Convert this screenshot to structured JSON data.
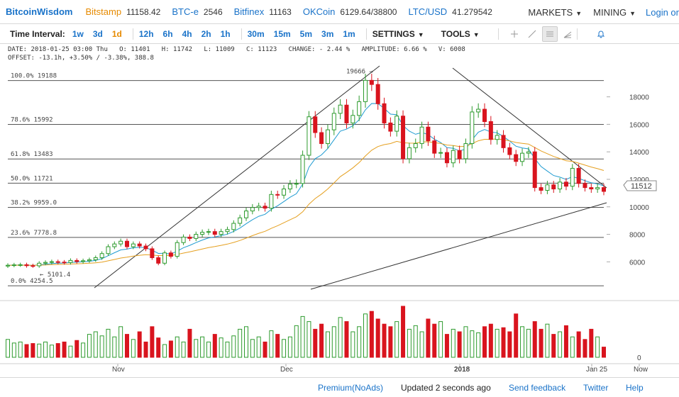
{
  "brand": "BitcoinWisdom",
  "markets": [
    {
      "exchange": "Bitstamp",
      "price": "11158.42",
      "color": "#e68a00"
    },
    {
      "exchange": "BTC-e",
      "price": "2546",
      "color": "#1a73c9"
    },
    {
      "exchange": "Bitfinex",
      "price": "11163",
      "color": "#1a73c9"
    },
    {
      "exchange": "OKCoin",
      "price": "6129.64/38800",
      "color": "#1a73c9"
    },
    {
      "exchange": "LTC/USD",
      "price": "41.279542",
      "color": "#1a73c9"
    }
  ],
  "menus": {
    "markets": "MARKETS",
    "mining": "MINING",
    "login": "Login or"
  },
  "toolbar": {
    "label": "Time Interval:",
    "intervals": [
      "1w",
      "3d",
      "1d",
      "12h",
      "6h",
      "4h",
      "2h",
      "1h",
      "30m",
      "15m",
      "5m",
      "3m",
      "1m"
    ],
    "active_interval": "1d",
    "settings": "SETTINGS",
    "tools": "TOOLS"
  },
  "info": {
    "line1": "DATE: 2018-01-25 03:00 Thu   O: 11401   H: 11742   L: 11009   C: 11123   CHANGE: - 2.44 %   AMPLITUDE: 6.66 %   V: 6008",
    "line2": "OFFSET: -13.1h, +3.50% / -3.38%, 388.8"
  },
  "chart_data": {
    "type": "candlestick",
    "y_ticks": [
      6000,
      8000,
      10000,
      12000,
      14000,
      16000,
      18000
    ],
    "ylim": [
      3800,
      20300
    ],
    "x_ticks": [
      "Nov",
      "Dec",
      "2018",
      "Jan 25",
      "Now"
    ],
    "current_price": "11512",
    "volume_axis_label": "0",
    "fib_levels": [
      {
        "label": "100.0% 19188",
        "value": 19188
      },
      {
        "label": "78.6% 15992",
        "value": 15992
      },
      {
        "label": "61.8% 13483",
        "value": 13483
      },
      {
        "label": "50.0% 11721",
        "value": 11721
      },
      {
        "label": "38.2% 9959.0",
        "value": 9959
      },
      {
        "label": "23.6% 7778.8",
        "value": 7778.8
      },
      {
        "label": "0.0% 4254.5",
        "value": 4254.5
      }
    ],
    "annotations": [
      {
        "text": "19666 →",
        "value": 19666
      },
      {
        "text": "← 5101.4",
        "value": 5101.4
      }
    ],
    "closes": [
      5750,
      5780,
      5790,
      5720,
      5710,
      5900,
      5960,
      6010,
      5980,
      5950,
      6100,
      6020,
      6080,
      6150,
      6300,
      6600,
      7100,
      7300,
      7500,
      7100,
      7300,
      7150,
      6950,
      6300,
      5900,
      6650,
      6400,
      7400,
      7800,
      7700,
      8000,
      8150,
      8200,
      8000,
      8200,
      8350,
      8800,
      9200,
      9700,
      9950,
      10050,
      9900,
      10900,
      10850,
      11300,
      11650,
      11700,
      13750,
      16550,
      15400,
      14600,
      15600,
      16800,
      17400,
      16100,
      16650,
      17650,
      19200,
      18900,
      17500,
      16100,
      15500,
      16600,
      13500,
      14300,
      14600,
      15800,
      14800,
      13900,
      13950,
      13200,
      14100,
      13500,
      14600,
      16900,
      17100,
      16200,
      14900,
      15200,
      14300,
      13800,
      13300,
      13900,
      14000,
      11400,
      11200,
      11600,
      11300,
      11800,
      11500,
      12800,
      11700,
      11400,
      11300,
      11400,
      11123
    ],
    "volumes": [
      0.35,
      0.28,
      0.3,
      0.25,
      0.27,
      0.26,
      0.3,
      0.24,
      0.27,
      0.3,
      0.22,
      0.33,
      0.28,
      0.45,
      0.5,
      0.42,
      0.55,
      0.4,
      0.6,
      0.45,
      0.35,
      0.5,
      0.3,
      0.6,
      0.38,
      0.25,
      0.32,
      0.4,
      0.3,
      0.55,
      0.35,
      0.4,
      0.3,
      0.45,
      0.38,
      0.3,
      0.42,
      0.55,
      0.6,
      0.35,
      0.4,
      0.3,
      0.52,
      0.45,
      0.35,
      0.4,
      0.62,
      0.8,
      0.7,
      0.55,
      0.65,
      0.5,
      0.6,
      0.78,
      0.7,
      0.5,
      0.6,
      0.85,
      0.9,
      0.75,
      0.65,
      0.6,
      0.7,
      1.0,
      0.55,
      0.62,
      0.5,
      0.75,
      0.65,
      0.7,
      0.45,
      0.55,
      0.5,
      0.6,
      0.52,
      0.48,
      0.6,
      0.65,
      0.55,
      0.58,
      0.5,
      0.85,
      0.6,
      0.55,
      0.7,
      0.55,
      0.65,
      0.45,
      0.5,
      0.62,
      0.4,
      0.5,
      0.35,
      0.55,
      0.4,
      0.2
    ],
    "ma_fast_color": "#1f9bd1",
    "ma_slow_color": "#e5a020",
    "up_color": "#2e9b2e",
    "down_color": "#d9141e"
  },
  "footer": {
    "premium": "Premium(NoAds)",
    "updated": "Updated 2 seconds ago",
    "feedback": "Send feedback",
    "twitter": "Twitter",
    "help": "Help"
  }
}
